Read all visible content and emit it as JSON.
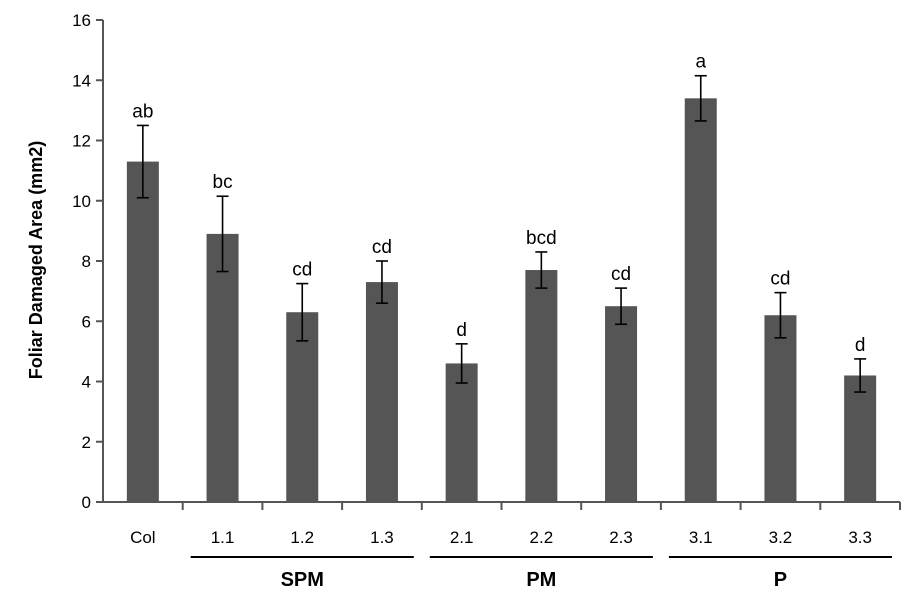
{
  "chart_data": {
    "type": "bar",
    "ylabel": "Foliar Damaged Area (mm2)",
    "xlabel": "",
    "ylim": [
      0,
      16
    ],
    "yticks": [
      0,
      2,
      4,
      6,
      8,
      10,
      12,
      14,
      16
    ],
    "grid": false,
    "bar_color": "#555555",
    "categories": [
      "Col",
      "1.1",
      "1.2",
      "1.3",
      "2.1",
      "2.2",
      "2.3",
      "3.1",
      "3.2",
      "3.3"
    ],
    "values": [
      11.3,
      8.9,
      6.3,
      7.3,
      4.6,
      7.7,
      6.5,
      13.4,
      6.2,
      4.2
    ],
    "errors": [
      1.2,
      1.25,
      0.95,
      0.7,
      0.65,
      0.6,
      0.6,
      0.75,
      0.75,
      0.55
    ],
    "significance": [
      "ab",
      "bc",
      "cd",
      "cd",
      "d",
      "bcd",
      "cd",
      "a",
      "cd",
      "d"
    ],
    "groups": [
      {
        "label": "SPM",
        "from": 1,
        "to": 3
      },
      {
        "label": "PM",
        "from": 4,
        "to": 6
      },
      {
        "label": "P",
        "from": 7,
        "to": 9
      }
    ]
  }
}
